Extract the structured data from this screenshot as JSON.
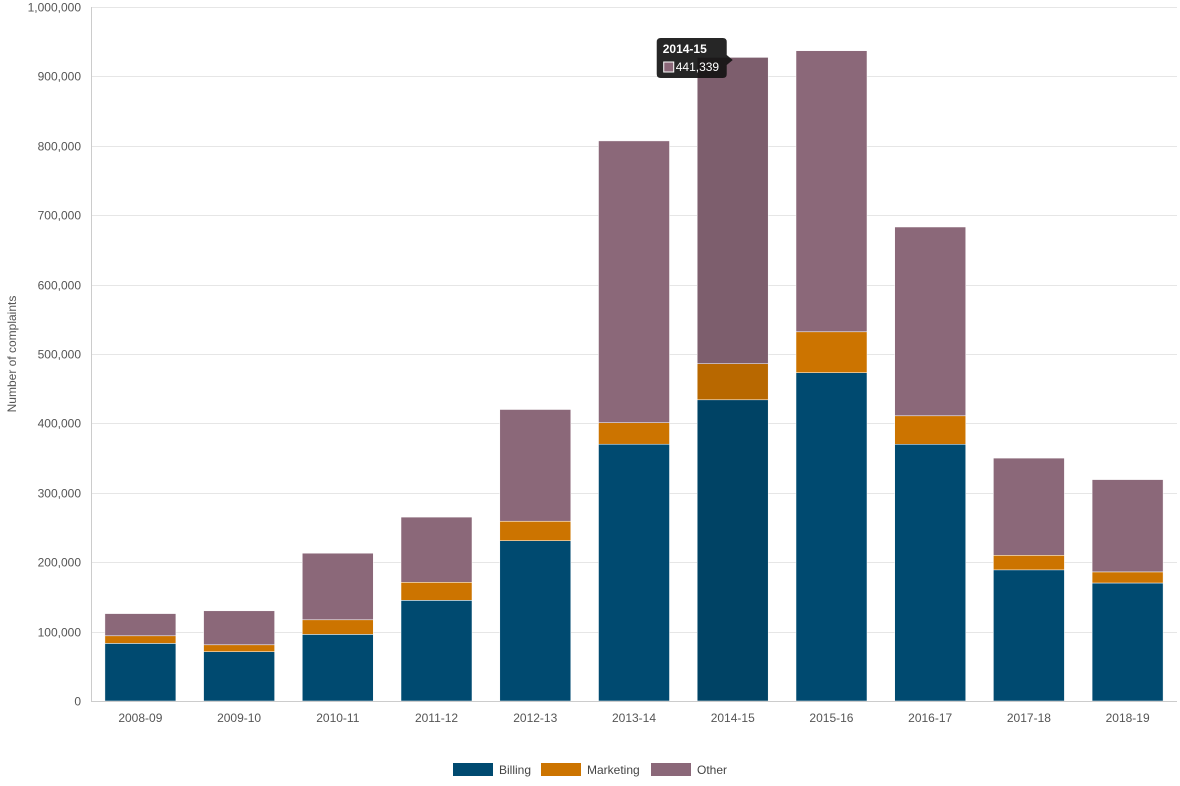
{
  "chart_data": {
    "type": "bar",
    "stacked": true,
    "title": "",
    "xlabel": "",
    "ylabel": "Number of complaints",
    "ylim": [
      0,
      1000000
    ],
    "yticks": [
      0,
      100000,
      200000,
      300000,
      400000,
      500000,
      600000,
      700000,
      800000,
      900000,
      1000000
    ],
    "ytick_labels": [
      "0",
      "100,000",
      "200,000",
      "300,000",
      "400,000",
      "500,000",
      "600,000",
      "700,000",
      "800,000",
      "900,000",
      "1,000,000"
    ],
    "grid": true,
    "legend_position": "bottom",
    "categories": [
      "2008-09",
      "2009-10",
      "2010-11",
      "2011-12",
      "2012-13",
      "2013-14",
      "2014-15",
      "2015-16",
      "2016-17",
      "2017-18",
      "2018-19"
    ],
    "series": [
      {
        "name": "Billing",
        "color": "#004a70",
        "values": [
          83000,
          71000,
          96000,
          145000,
          231000,
          370000,
          434000,
          473000,
          370000,
          189000,
          170000
        ]
      },
      {
        "name": "Marketing",
        "color": "#cc7400",
        "values": [
          11000,
          10000,
          21000,
          26000,
          28000,
          31000,
          52000,
          59000,
          41000,
          21000,
          16000
        ]
      },
      {
        "name": "Other",
        "color": "#8b6879",
        "values": [
          32000,
          49000,
          96000,
          94000,
          161000,
          406000,
          441339,
          405000,
          272000,
          140000,
          133000
        ]
      }
    ],
    "highlight": {
      "category_index": 6,
      "series_index": 2
    },
    "tooltip": {
      "title": "2014-15",
      "value": "441,339"
    }
  }
}
